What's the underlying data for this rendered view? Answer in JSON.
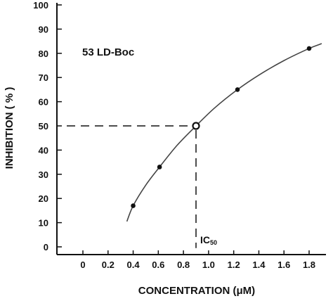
{
  "chart_data": {
    "type": "scatter",
    "annotation": "53 LD-Boc",
    "xlabel": "CONCENTRATION (μM)",
    "ylabel": "INHIBITION ( % )",
    "xlim": [
      -0.2,
      1.9
    ],
    "ylim": [
      -2,
      100
    ],
    "x_ticks": [
      0,
      0.2,
      0.4,
      0.6,
      0.8,
      1.0,
      1.2,
      1.4,
      1.6,
      1.8
    ],
    "x_tick_labels": [
      "0",
      "0.2",
      "0.4",
      "0.6",
      "0.8",
      "1.0",
      "1.2",
      "1.4",
      "1.6",
      "1.8"
    ],
    "y_ticks": [
      0,
      10,
      20,
      30,
      40,
      50,
      60,
      70,
      80,
      90,
      100
    ],
    "y_tick_labels": [
      "0",
      "10",
      "20",
      "30",
      "40",
      "50",
      "60",
      "70",
      "80",
      "90",
      "100"
    ],
    "points": [
      {
        "x": 0.4,
        "y": 17
      },
      {
        "x": 0.61,
        "y": 33
      },
      {
        "x": 1.23,
        "y": 65
      },
      {
        "x": 1.8,
        "y": 82
      }
    ],
    "fit_curve": [
      {
        "x": 0.35,
        "y": 10.5
      },
      {
        "x": 0.4,
        "y": 17
      },
      {
        "x": 0.5,
        "y": 25.5
      },
      {
        "x": 0.61,
        "y": 33
      },
      {
        "x": 0.75,
        "y": 42
      },
      {
        "x": 0.9,
        "y": 50
      },
      {
        "x": 1.05,
        "y": 57.5
      },
      {
        "x": 1.23,
        "y": 65
      },
      {
        "x": 1.4,
        "y": 71
      },
      {
        "x": 1.6,
        "y": 77
      },
      {
        "x": 1.8,
        "y": 82
      },
      {
        "x": 1.9,
        "y": 84
      }
    ],
    "ic50": {
      "x": 0.9,
      "y": 50,
      "label_main": "IC",
      "label_sub": "50"
    },
    "colors": {
      "ink": "#111111",
      "curve": "#444444"
    }
  }
}
